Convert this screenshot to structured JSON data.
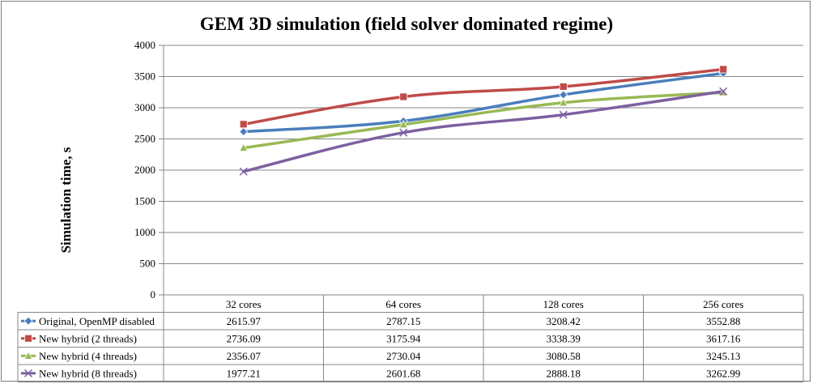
{
  "chart_data": {
    "type": "line",
    "title": "GEM 3D simulation (field solver dominated regime)",
    "xlabel": "",
    "ylabel": "Simulation time, s",
    "categories": [
      "32 cores",
      "64 cores",
      "128 cores",
      "256 cores"
    ],
    "ylim": [
      0,
      4000
    ],
    "yticks": [
      0,
      500,
      1000,
      1500,
      2000,
      2500,
      3000,
      3500,
      4000
    ],
    "grid": true,
    "legend": "data-table-below",
    "series": [
      {
        "name": "Original, OpenMP disabled",
        "values": [
          2615.97,
          2787.15,
          3208.42,
          3552.88
        ],
        "display": [
          "2615.97",
          "2787.15",
          "3208.42",
          "3552.88"
        ],
        "color": "#4a7ebb",
        "marker": "diamond"
      },
      {
        "name": "New hybrid (2 threads)",
        "values": [
          2736.09,
          3175.94,
          3338.39,
          3617.16
        ],
        "display": [
          "2736.09",
          "3175.94",
          "3338.39",
          "3617.16"
        ],
        "color": "#be4b48",
        "marker": "square"
      },
      {
        "name": "New hybrid (4 threads)",
        "values": [
          2356.07,
          2730.04,
          3080.58,
          3245.13
        ],
        "display": [
          "2356.07",
          "2730.04",
          "3080.58",
          "3245.13"
        ],
        "color": "#98b954",
        "marker": "triangle"
      },
      {
        "name": "New hybrid (8 threads)",
        "values": [
          1977.21,
          2601.68,
          2888.18,
          3262.99
        ],
        "display": [
          "1977.21",
          "2601.68",
          "2888.18",
          "3262.99"
        ],
        "color": "#7d60a0",
        "marker": "x"
      }
    ]
  }
}
